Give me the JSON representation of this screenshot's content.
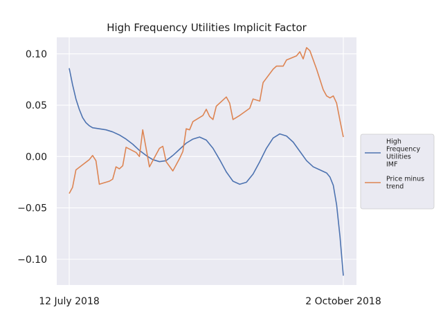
{
  "chart_data": {
    "type": "line",
    "title": "High Frequency Utilities Implicit Factor",
    "xlabel": "",
    "ylabel": "",
    "x_tick_labels": [
      "12 July 2018",
      "2 October 2018"
    ],
    "x_range": [
      "2018-07-12",
      "2018-10-02"
    ],
    "ylim": [
      -0.125,
      0.116
    ],
    "y_ticks": [
      0.1,
      0.05,
      0.0,
      -0.05,
      -0.1
    ],
    "y_tick_labels": [
      "0.10",
      "0.05",
      "0.00",
      "−0.05",
      "−0.10"
    ],
    "grid": true,
    "legend_position": "right",
    "series": [
      {
        "name": "High Frequency Utilities IMF",
        "color": "#4C72B0",
        "points": [
          [
            "2018-07-12",
            0.086
          ],
          [
            "2018-07-13",
            0.07
          ],
          [
            "2018-07-14",
            0.056
          ],
          [
            "2018-07-15",
            0.046
          ],
          [
            "2018-07-16",
            0.038
          ],
          [
            "2018-07-17",
            0.033
          ],
          [
            "2018-07-18",
            0.03
          ],
          [
            "2018-07-19",
            0.028
          ],
          [
            "2018-07-21",
            0.027
          ],
          [
            "2018-07-23",
            0.026
          ],
          [
            "2018-07-25",
            0.024
          ],
          [
            "2018-07-27",
            0.021
          ],
          [
            "2018-07-29",
            0.017
          ],
          [
            "2018-07-31",
            0.012
          ],
          [
            "2018-08-02",
            0.006
          ],
          [
            "2018-08-04",
            0.001
          ],
          [
            "2018-08-06",
            -0.003
          ],
          [
            "2018-08-08",
            -0.005
          ],
          [
            "2018-08-10",
            -0.004
          ],
          [
            "2018-08-12",
            0.001
          ],
          [
            "2018-08-14",
            0.007
          ],
          [
            "2018-08-16",
            0.013
          ],
          [
            "2018-08-18",
            0.017
          ],
          [
            "2018-08-20",
            0.019
          ],
          [
            "2018-08-22",
            0.016
          ],
          [
            "2018-08-24",
            0.008
          ],
          [
            "2018-08-26",
            -0.003
          ],
          [
            "2018-08-28",
            -0.015
          ],
          [
            "2018-08-30",
            -0.024
          ],
          [
            "2018-09-01",
            -0.027
          ],
          [
            "2018-09-03",
            -0.025
          ],
          [
            "2018-09-05",
            -0.017
          ],
          [
            "2018-09-07",
            -0.005
          ],
          [
            "2018-09-09",
            0.008
          ],
          [
            "2018-09-11",
            0.018
          ],
          [
            "2018-09-13",
            0.022
          ],
          [
            "2018-09-15",
            0.02
          ],
          [
            "2018-09-17",
            0.014
          ],
          [
            "2018-09-19",
            0.005
          ],
          [
            "2018-09-21",
            -0.004
          ],
          [
            "2018-09-23",
            -0.01
          ],
          [
            "2018-09-25",
            -0.013
          ],
          [
            "2018-09-27",
            -0.016
          ],
          [
            "2018-09-28",
            -0.02
          ],
          [
            "2018-09-29",
            -0.028
          ],
          [
            "2018-09-30",
            -0.047
          ],
          [
            "2018-10-01",
            -0.078
          ],
          [
            "2018-10-02",
            -0.116
          ]
        ]
      },
      {
        "name": "Price minus trend",
        "color": "#DD8452",
        "points": [
          [
            "2018-07-12",
            -0.036
          ],
          [
            "2018-07-13",
            -0.03
          ],
          [
            "2018-07-14",
            -0.013
          ],
          [
            "2018-07-16",
            -0.008
          ],
          [
            "2018-07-18",
            -0.003
          ],
          [
            "2018-07-19",
            0.001
          ],
          [
            "2018-07-20",
            -0.004
          ],
          [
            "2018-07-21",
            -0.027
          ],
          [
            "2018-07-22",
            -0.026
          ],
          [
            "2018-07-24",
            -0.024
          ],
          [
            "2018-07-25",
            -0.022
          ],
          [
            "2018-07-26",
            -0.01
          ],
          [
            "2018-07-27",
            -0.012
          ],
          [
            "2018-07-28",
            -0.009
          ],
          [
            "2018-07-29",
            0.009
          ],
          [
            "2018-08-01",
            0.004
          ],
          [
            "2018-08-02",
            0.0
          ],
          [
            "2018-08-03",
            0.026
          ],
          [
            "2018-08-05",
            -0.01
          ],
          [
            "2018-08-07",
            0.002
          ],
          [
            "2018-08-08",
            0.008
          ],
          [
            "2018-08-09",
            0.01
          ],
          [
            "2018-08-10",
            -0.005
          ],
          [
            "2018-08-12",
            -0.014
          ],
          [
            "2018-08-14",
            -0.002
          ],
          [
            "2018-08-15",
            0.005
          ],
          [
            "2018-08-16",
            0.027
          ],
          [
            "2018-08-17",
            0.026
          ],
          [
            "2018-08-18",
            0.034
          ],
          [
            "2018-08-21",
            0.04
          ],
          [
            "2018-08-22",
            0.046
          ],
          [
            "2018-08-23",
            0.039
          ],
          [
            "2018-08-24",
            0.036
          ],
          [
            "2018-08-25",
            0.049
          ],
          [
            "2018-08-28",
            0.058
          ],
          [
            "2018-08-29",
            0.052
          ],
          [
            "2018-08-30",
            0.036
          ],
          [
            "2018-09-01",
            0.04
          ],
          [
            "2018-09-04",
            0.047
          ],
          [
            "2018-09-05",
            0.056
          ],
          [
            "2018-09-07",
            0.054
          ],
          [
            "2018-09-08",
            0.072
          ],
          [
            "2018-09-11",
            0.085
          ],
          [
            "2018-09-12",
            0.088
          ],
          [
            "2018-09-14",
            0.088
          ],
          [
            "2018-09-15",
            0.094
          ],
          [
            "2018-09-18",
            0.098
          ],
          [
            "2018-09-19",
            0.102
          ],
          [
            "2018-09-20",
            0.095
          ],
          [
            "2018-09-21",
            0.106
          ],
          [
            "2018-09-22",
            0.103
          ],
          [
            "2018-09-24",
            0.085
          ],
          [
            "2018-09-26",
            0.065
          ],
          [
            "2018-09-27",
            0.059
          ],
          [
            "2018-09-28",
            0.057
          ],
          [
            "2018-09-29",
            0.059
          ],
          [
            "2018-09-30",
            0.052
          ],
          [
            "2018-10-01",
            0.035
          ],
          [
            "2018-10-02",
            0.019
          ]
        ]
      }
    ]
  }
}
